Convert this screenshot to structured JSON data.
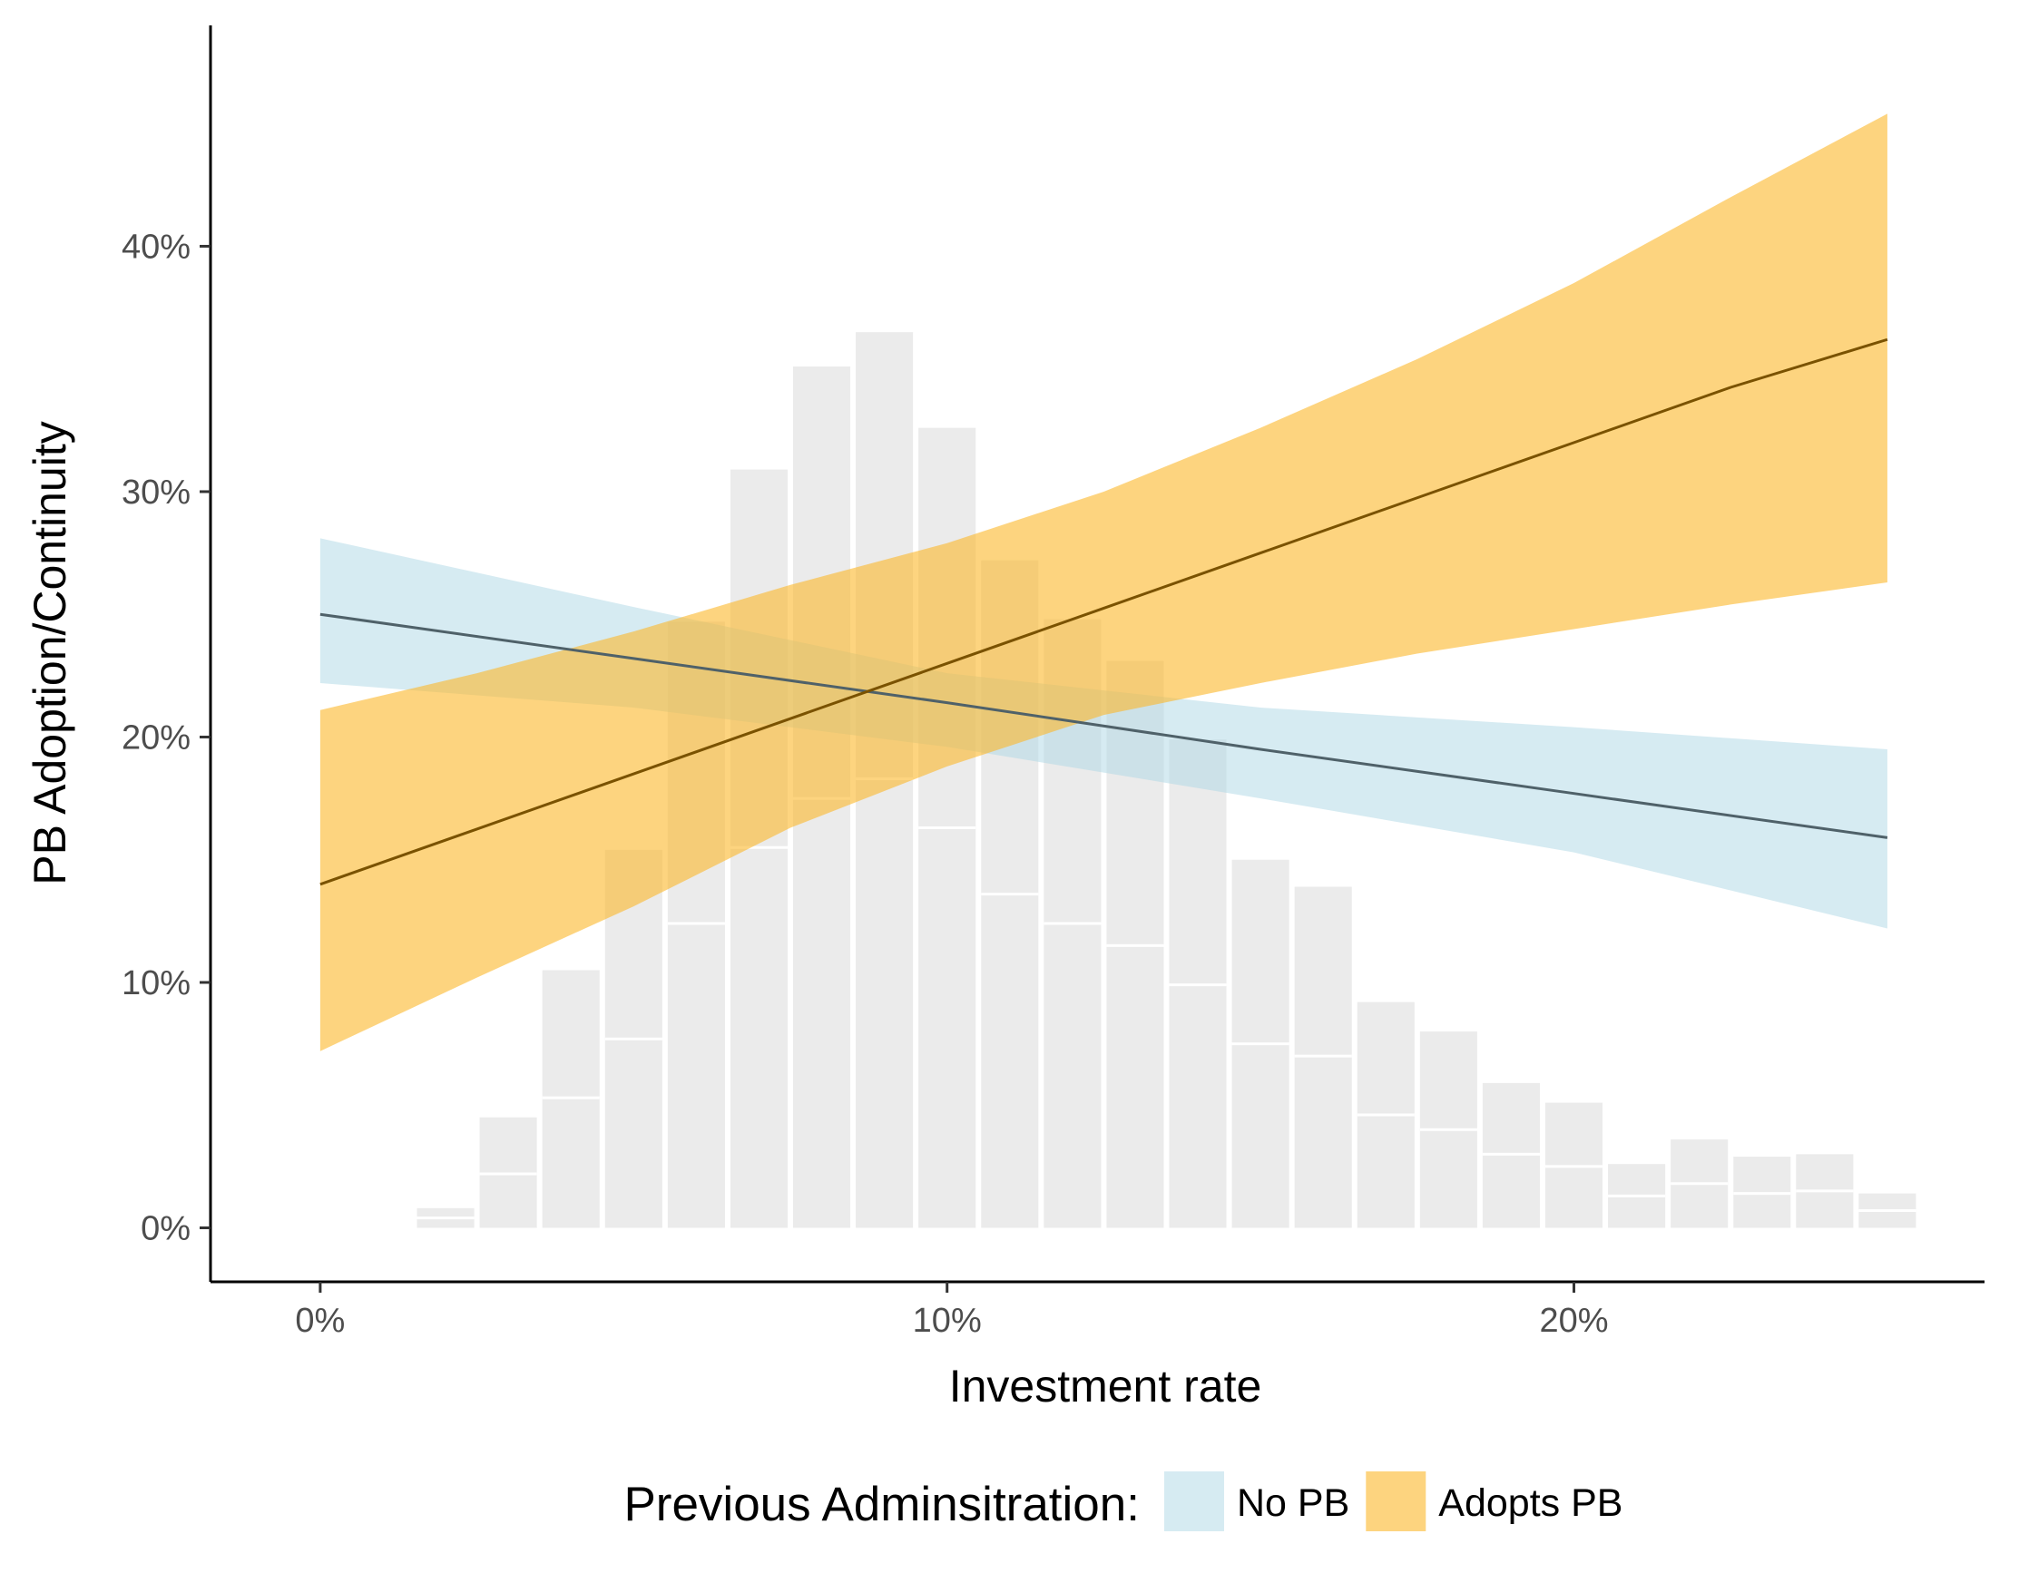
{
  "chart_data": {
    "type": "area",
    "xlabel": "Investment rate",
    "ylabel": "PB Adoption/Continuity",
    "xlim": [
      -0.0175,
      0.2655
    ],
    "ylim": [
      -0.022,
      0.49
    ],
    "x_ticks": [
      0.0,
      0.1,
      0.2
    ],
    "x_tick_labels": [
      "0%",
      "10%",
      "20%"
    ],
    "y_ticks": [
      0.0,
      0.1,
      0.2,
      0.3,
      0.4
    ],
    "y_tick_labels": [
      "0%",
      "10%",
      "20%",
      "30%",
      "40%"
    ],
    "grid": false,
    "legend_position": "bottom",
    "legend_title": "Previous Adminsitration:",
    "histogram": {
      "color": "#ebebeb",
      "divider_color": "#ffffff",
      "bin_width": 0.01,
      "bins": [
        {
          "center": 0.02,
          "total": 0.008,
          "split": 0.004
        },
        {
          "center": 0.03,
          "total": 0.045,
          "split": 0.022
        },
        {
          "center": 0.04,
          "total": 0.105,
          "split": 0.053
        },
        {
          "center": 0.05,
          "total": 0.154,
          "split": 0.077
        },
        {
          "center": 0.06,
          "total": 0.247,
          "split": 0.124
        },
        {
          "center": 0.07,
          "total": 0.309,
          "split": 0.155
        },
        {
          "center": 0.08,
          "total": 0.351,
          "split": 0.175
        },
        {
          "center": 0.09,
          "total": 0.365,
          "split": 0.183
        },
        {
          "center": 0.1,
          "total": 0.326,
          "split": 0.163
        },
        {
          "center": 0.11,
          "total": 0.272,
          "split": 0.136
        },
        {
          "center": 0.12,
          "total": 0.248,
          "split": 0.124
        },
        {
          "center": 0.13,
          "total": 0.231,
          "split": 0.115
        },
        {
          "center": 0.14,
          "total": 0.199,
          "split": 0.099
        },
        {
          "center": 0.15,
          "total": 0.15,
          "split": 0.075
        },
        {
          "center": 0.16,
          "total": 0.139,
          "split": 0.07
        },
        {
          "center": 0.17,
          "total": 0.092,
          "split": 0.046
        },
        {
          "center": 0.18,
          "total": 0.08,
          "split": 0.04
        },
        {
          "center": 0.19,
          "total": 0.059,
          "split": 0.03
        },
        {
          "center": 0.2,
          "total": 0.051,
          "split": 0.025
        },
        {
          "center": 0.21,
          "total": 0.026,
          "split": 0.013
        },
        {
          "center": 0.22,
          "total": 0.036,
          "split": 0.018
        },
        {
          "center": 0.23,
          "total": 0.029,
          "split": 0.014
        },
        {
          "center": 0.24,
          "total": 0.03,
          "split": 0.015
        },
        {
          "center": 0.25,
          "total": 0.014,
          "split": 0.007
        }
      ]
    },
    "series": [
      {
        "name": "No PB",
        "fill_color": "#add8e6",
        "fill_opacity": 0.5,
        "line_color": "#4f6169",
        "x": [
          0.0,
          0.05,
          0.1,
          0.15,
          0.2,
          0.25
        ],
        "fit": [
          0.25,
          0.232,
          0.214,
          0.195,
          0.177,
          0.159
        ],
        "lower": [
          0.222,
          0.212,
          0.196,
          0.175,
          0.153,
          0.122
        ],
        "upper": [
          0.281,
          0.253,
          0.226,
          0.212,
          0.204,
          0.195
        ]
      },
      {
        "name": "Adopts PB",
        "fill_color": "#fbb829",
        "fill_opacity": 0.6,
        "line_color": "#7a5200",
        "x": [
          0.0,
          0.025,
          0.05,
          0.075,
          0.1,
          0.125,
          0.15,
          0.175,
          0.2,
          0.225,
          0.25
        ],
        "fit": [
          0.14,
          0.1625,
          0.185,
          0.2075,
          0.23,
          0.2525,
          0.275,
          0.2975,
          0.32,
          0.3425,
          0.362
        ],
        "lower": [
          0.072,
          0.102,
          0.131,
          0.163,
          0.188,
          0.209,
          0.222,
          0.234,
          0.244,
          0.254,
          0.263
        ],
        "upper": [
          0.211,
          0.226,
          0.243,
          0.262,
          0.279,
          0.3,
          0.326,
          0.354,
          0.385,
          0.42,
          0.454
        ]
      }
    ]
  }
}
